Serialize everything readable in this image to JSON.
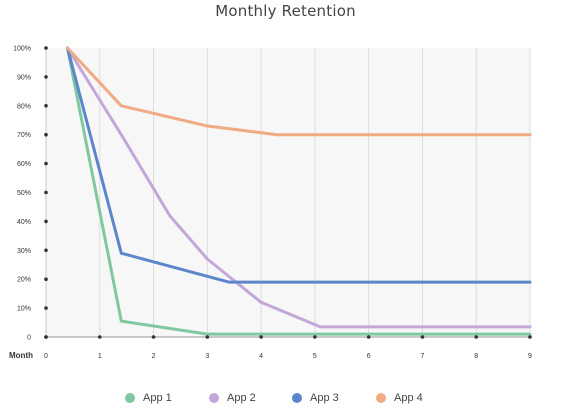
{
  "chart_data": {
    "type": "line",
    "title": "Monthly Retention",
    "xlabel": "Month",
    "ylabel": "",
    "x_ticks": [
      "0",
      "1",
      "2",
      "3",
      "4",
      "5",
      "6",
      "7",
      "8",
      "9"
    ],
    "y_ticks": [
      "100%",
      "90%",
      "80%",
      "70%",
      "60%",
      "50%",
      "40%",
      "30%",
      "20%",
      "10%",
      "0"
    ],
    "xlim": [
      0,
      9
    ],
    "ylim": [
      0,
      100
    ],
    "grid": true,
    "legend_position": "bottom",
    "series": [
      {
        "name": "App 1",
        "color": "#7fc8a0",
        "points": [
          [
            0.4,
            100
          ],
          [
            1.4,
            5.5
          ],
          [
            3,
            1
          ],
          [
            9,
            1
          ]
        ]
      },
      {
        "name": "App 2",
        "color": "#c3a7d8",
        "points": [
          [
            0.4,
            100
          ],
          [
            1.4,
            70
          ],
          [
            2.3,
            42
          ],
          [
            3,
            27
          ],
          [
            4,
            12
          ],
          [
            5.1,
            3.5
          ],
          [
            9,
            3.5
          ]
        ]
      },
      {
        "name": "App 3",
        "color": "#5b86cb",
        "points": [
          [
            0.4,
            100
          ],
          [
            1.4,
            29
          ],
          [
            3,
            21
          ],
          [
            3.4,
            19
          ],
          [
            9,
            19
          ]
        ]
      },
      {
        "name": "App 4",
        "color": "#f0ab84",
        "points": [
          [
            0.4,
            100
          ],
          [
            1.4,
            80
          ],
          [
            3,
            73
          ],
          [
            4.3,
            70
          ],
          [
            9,
            70
          ]
        ]
      }
    ]
  }
}
